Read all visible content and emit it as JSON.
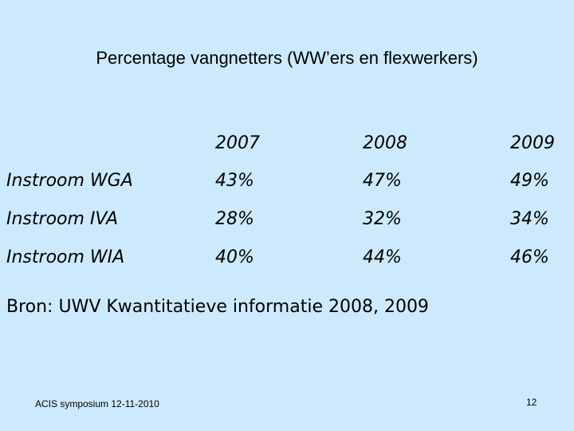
{
  "title": "Percentage vangnetters (WW’ers en flexwerkers)",
  "table": {
    "columns": [
      "2007",
      "2008",
      "2009"
    ],
    "rows": [
      {
        "label": "Instroom WGA",
        "cells": [
          "43%",
          "47%",
          "49%"
        ]
      },
      {
        "label": "Instroom IVA",
        "cells": [
          "28%",
          "32%",
          "34%"
        ]
      },
      {
        "label": "Instroom WIA",
        "cells": [
          "40%",
          "44%",
          "46%"
        ]
      }
    ]
  },
  "source": "Bron: UWV Kwantitatieve informatie 2008, 2009",
  "footer": "ACIS symposium 12-11-2010",
  "page_number": "12"
}
